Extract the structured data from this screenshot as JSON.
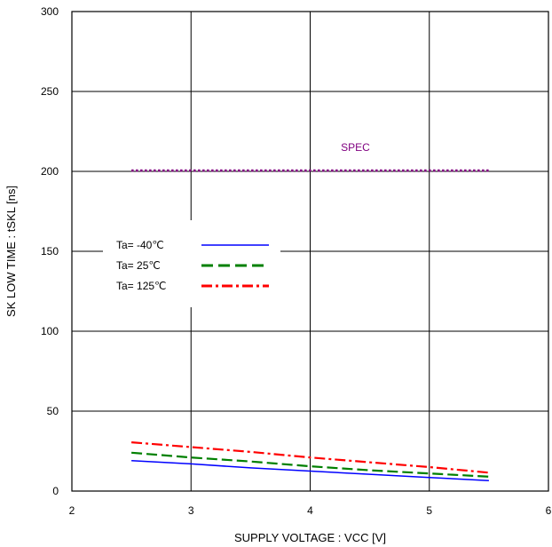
{
  "chart_data": {
    "type": "line",
    "xlabel": "SUPPLY VOLTAGE : VCC [V]",
    "ylabel": "SK LOW TIME : tSKL [ns]",
    "xlim": [
      2,
      6
    ],
    "ylim": [
      0,
      300
    ],
    "xticks": [
      "2",
      "3",
      "4",
      "5",
      "6"
    ],
    "yticks": [
      "0",
      "50",
      "100",
      "150",
      "200",
      "250",
      "300"
    ],
    "grid": true,
    "legend_position": "left",
    "series": [
      {
        "name": "Ta= -40℃",
        "color": "#0000ff",
        "style": "solid",
        "x": [
          2.5,
          3.0,
          3.5,
          4.0,
          4.5,
          5.0,
          5.5
        ],
        "y": [
          19,
          17,
          14.5,
          12.5,
          10.5,
          8.5,
          6.5
        ]
      },
      {
        "name": "Ta= 25℃",
        "color": "#008000",
        "style": "dashed",
        "x": [
          2.5,
          3.0,
          3.5,
          4.0,
          4.5,
          5.0,
          5.5
        ],
        "y": [
          24,
          21,
          18.5,
          15.5,
          13,
          11,
          9
        ]
      },
      {
        "name": "Ta= 125℃",
        "color": "#ff0000",
        "style": "dashdot",
        "x": [
          2.5,
          3.0,
          3.5,
          4.0,
          4.5,
          5.0,
          5.5
        ],
        "y": [
          30.5,
          27.5,
          24.5,
          21,
          18,
          15,
          11.5
        ]
      },
      {
        "name": "SPEC",
        "color": "#800080",
        "style": "dotted",
        "x": [
          2.5,
          5.5
        ],
        "y": [
          200.5,
          200.5
        ]
      }
    ],
    "annotations": [
      {
        "text": "SPEC",
        "x": 4.38,
        "y": 215
      }
    ]
  }
}
